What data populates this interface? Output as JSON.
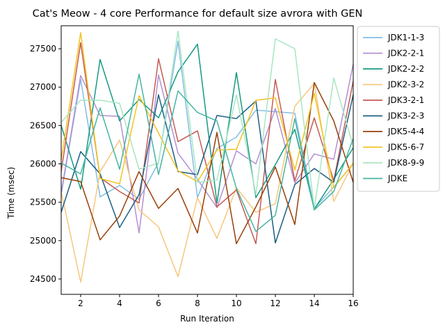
{
  "chart_data": {
    "type": "line",
    "title": "Cat's Meow - 4 core Performance for default size avrora with GEN",
    "xlabel": "Run Iteration",
    "ylabel": "Time (msec)",
    "xlim": [
      1,
      16
    ],
    "ylim": [
      24300,
      27800
    ],
    "xticks": [
      2,
      4,
      6,
      8,
      10,
      12,
      14,
      16
    ],
    "yticks": [
      24500,
      25000,
      25500,
      26000,
      26500,
      27000,
      27500
    ],
    "grid": false,
    "legend_position": "outside-right",
    "x": [
      1,
      2,
      3,
      4,
      5,
      6,
      7,
      8,
      9,
      10,
      11,
      12,
      13,
      14,
      15,
      16
    ],
    "series": [
      {
        "name": "JDK1-1-3",
        "color": "#85bce5",
        "values": [
          25600,
          27100,
          25570,
          25720,
          25540,
          26020,
          27600,
          25560,
          26200,
          26350,
          26700,
          26680,
          26660,
          25420,
          25700,
          26000
        ]
      },
      {
        "name": "JDK2-2-1",
        "color": "#b48fd2",
        "values": [
          25620,
          27150,
          26630,
          26620,
          25100,
          27160,
          26140,
          25800,
          25430,
          26170,
          26000,
          26720,
          25750,
          26130,
          26060,
          27300
        ]
      },
      {
        "name": "JDK2-2-2",
        "color": "#169a82",
        "values": [
          26500,
          25670,
          27360,
          26560,
          26840,
          26600,
          27200,
          27560,
          25490,
          27190,
          25560,
          25990,
          26450,
          25410,
          25800,
          26210
        ]
      },
      {
        "name": "JDK2-3-2",
        "color": "#f6c77d",
        "values": [
          25640,
          24460,
          25900,
          26310,
          25400,
          25180,
          24530,
          25560,
          25030,
          25690,
          25370,
          25480,
          26750,
          27050,
          25510,
          26010
        ]
      },
      {
        "name": "JDK3-2-1",
        "color": "#c55a52",
        "values": [
          25900,
          27580,
          25820,
          25640,
          25490,
          27370,
          26290,
          26430,
          25440,
          25660,
          24960,
          27100,
          25780,
          26600,
          25780,
          27080
        ]
      },
      {
        "name": "JDK3-2-3",
        "color": "#1c5f82",
        "values": [
          25370,
          26160,
          25870,
          25170,
          25600,
          26900,
          25900,
          25860,
          26630,
          26590,
          26820,
          24970,
          25730,
          25940,
          25760,
          26900
        ]
      },
      {
        "name": "JDK5-4-4",
        "color": "#974008",
        "values": [
          25820,
          25770,
          25010,
          25320,
          25900,
          25420,
          25680,
          25100,
          26410,
          24960,
          25440,
          25960,
          25210,
          27060,
          26560,
          25760
        ]
      },
      {
        "name": "JDK5-6-7",
        "color": "#f2c31f",
        "values": [
          26050,
          27710,
          25810,
          25740,
          26890,
          26400,
          25910,
          25770,
          26180,
          26190,
          26830,
          26860,
          25920,
          26920,
          25690,
          26010
        ]
      },
      {
        "name": "JDK8-9-9",
        "color": "#a8e6c1",
        "values": [
          26540,
          26830,
          26830,
          26790,
          25930,
          26010,
          27730,
          25760,
          25790,
          26900,
          25600,
          27630,
          27500,
          25420,
          27120,
          26230
        ]
      },
      {
        "name": "JDKE",
        "color": "#46b5a3",
        "values": [
          26010,
          25870,
          26730,
          25930,
          27170,
          25860,
          26950,
          26670,
          26560,
          25680,
          25120,
          25330,
          26590,
          25400,
          25640,
          26330
        ]
      }
    ]
  }
}
